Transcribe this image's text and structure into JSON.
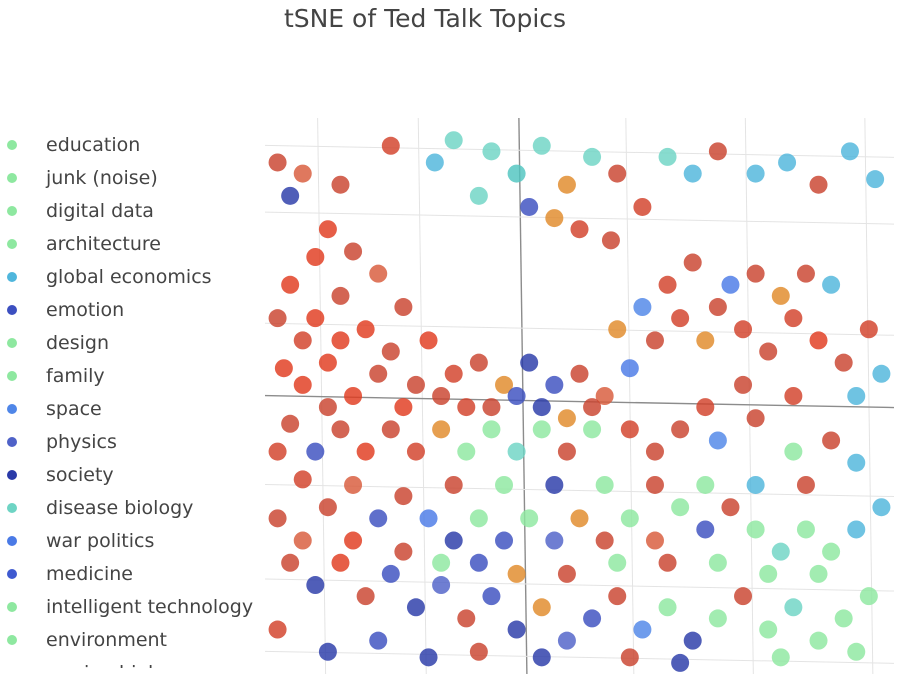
{
  "chart_data": {
    "type": "scatter",
    "title": "tSNE of Ted Talk Topics",
    "xlabel": "",
    "ylabel": "",
    "grid": true,
    "legend_position": "left",
    "series": [
      {
        "name": "education",
        "color": "#8ee8a0"
      },
      {
        "name": "junk (noise)",
        "color": "#8ee8a0"
      },
      {
        "name": "digital data",
        "color": "#8ee8a0"
      },
      {
        "name": "architecture",
        "color": "#8ee8a0"
      },
      {
        "name": "global economics",
        "color": "#4fb6dc"
      },
      {
        "name": "emotion",
        "color": "#3c4fc0"
      },
      {
        "name": "design",
        "color": "#8ee8a0"
      },
      {
        "name": "family",
        "color": "#8ee8a0"
      },
      {
        "name": "space",
        "color": "#4f86e8"
      },
      {
        "name": "physics",
        "color": "#4f62c8"
      },
      {
        "name": "society",
        "color": "#2a3aa8"
      },
      {
        "name": "disease biology",
        "color": "#6ed4c4"
      },
      {
        "name": "war politics",
        "color": "#4a7ae6"
      },
      {
        "name": "medicine",
        "color": "#3f5ad0"
      },
      {
        "name": "intelligent technology",
        "color": "#8ee8a0"
      },
      {
        "name": "environment",
        "color": "#8ee8a0"
      },
      {
        "name": "marine biology",
        "color": "#8ee8a0"
      }
    ],
    "points": [
      {
        "x": 2,
        "y": 92,
        "c": "#c9432e"
      },
      {
        "x": 6,
        "y": 90,
        "c": "#d85a3a"
      },
      {
        "x": 4,
        "y": 86,
        "c": "#2a3aa8"
      },
      {
        "x": 12,
        "y": 88,
        "c": "#c9432e"
      },
      {
        "x": 20,
        "y": 95,
        "c": "#d2412a"
      },
      {
        "x": 27,
        "y": 92,
        "c": "#4fb6dc"
      },
      {
        "x": 30,
        "y": 96,
        "c": "#6ed4c4"
      },
      {
        "x": 36,
        "y": 94,
        "c": "#6ed4c4"
      },
      {
        "x": 40,
        "y": 90,
        "c": "#4fc4c0"
      },
      {
        "x": 44,
        "y": 95,
        "c": "#6ed4c4"
      },
      {
        "x": 48,
        "y": 88,
        "c": "#e08a2a"
      },
      {
        "x": 52,
        "y": 93,
        "c": "#6ed4c4"
      },
      {
        "x": 56,
        "y": 90,
        "c": "#c9432e"
      },
      {
        "x": 60,
        "y": 84,
        "c": "#d2412a"
      },
      {
        "x": 64,
        "y": 93,
        "c": "#6ed4c4"
      },
      {
        "x": 68,
        "y": 90,
        "c": "#4fb6dc"
      },
      {
        "x": 72,
        "y": 94,
        "c": "#c9432e"
      },
      {
        "x": 78,
        "y": 90,
        "c": "#4fb6dc"
      },
      {
        "x": 83,
        "y": 92,
        "c": "#4fb6dc"
      },
      {
        "x": 88,
        "y": 88,
        "c": "#c9432e"
      },
      {
        "x": 93,
        "y": 94,
        "c": "#4fb6dc"
      },
      {
        "x": 97,
        "y": 89,
        "c": "#4fb6dc"
      },
      {
        "x": 34,
        "y": 86,
        "c": "#6ed4c4"
      },
      {
        "x": 46,
        "y": 82,
        "c": "#e08a2a"
      },
      {
        "x": 50,
        "y": 80,
        "c": "#d2412a"
      },
      {
        "x": 55,
        "y": 78,
        "c": "#c9432e"
      },
      {
        "x": 42,
        "y": 84,
        "c": "#3c4fc0"
      },
      {
        "x": 10,
        "y": 80,
        "c": "#e03a1e"
      },
      {
        "x": 8,
        "y": 75,
        "c": "#e03a1e"
      },
      {
        "x": 14,
        "y": 76,
        "c": "#c9432e"
      },
      {
        "x": 18,
        "y": 72,
        "c": "#d85a3a"
      },
      {
        "x": 4,
        "y": 70,
        "c": "#e03a1e"
      },
      {
        "x": 12,
        "y": 68,
        "c": "#c9432e"
      },
      {
        "x": 22,
        "y": 66,
        "c": "#c9432e"
      },
      {
        "x": 16,
        "y": 62,
        "c": "#e03a1e"
      },
      {
        "x": 6,
        "y": 60,
        "c": "#d2412a"
      },
      {
        "x": 3,
        "y": 55,
        "c": "#e03a1e"
      },
      {
        "x": 10,
        "y": 56,
        "c": "#e03a1e"
      },
      {
        "x": 20,
        "y": 58,
        "c": "#c9432e"
      },
      {
        "x": 26,
        "y": 60,
        "c": "#e03a1e"
      },
      {
        "x": 30,
        "y": 54,
        "c": "#d2412a"
      },
      {
        "x": 24,
        "y": 52,
        "c": "#c9432e"
      },
      {
        "x": 34,
        "y": 56,
        "c": "#c9432e"
      },
      {
        "x": 38,
        "y": 52,
        "c": "#e08a2a"
      },
      {
        "x": 42,
        "y": 56,
        "c": "#2a3aa8"
      },
      {
        "x": 46,
        "y": 52,
        "c": "#3c4fc0"
      },
      {
        "x": 50,
        "y": 54,
        "c": "#c9432e"
      },
      {
        "x": 54,
        "y": 50,
        "c": "#d85a3a"
      },
      {
        "x": 58,
        "y": 55,
        "c": "#4a7ae6"
      },
      {
        "x": 62,
        "y": 60,
        "c": "#c9432e"
      },
      {
        "x": 66,
        "y": 64,
        "c": "#d2412a"
      },
      {
        "x": 70,
        "y": 60,
        "c": "#e08a2a"
      },
      {
        "x": 72,
        "y": 66,
        "c": "#c9432e"
      },
      {
        "x": 76,
        "y": 62,
        "c": "#d2412a"
      },
      {
        "x": 80,
        "y": 58,
        "c": "#c9432e"
      },
      {
        "x": 84,
        "y": 64,
        "c": "#d2412a"
      },
      {
        "x": 88,
        "y": 60,
        "c": "#e03a1e"
      },
      {
        "x": 92,
        "y": 56,
        "c": "#c9432e"
      },
      {
        "x": 96,
        "y": 62,
        "c": "#d2412a"
      },
      {
        "x": 90,
        "y": 70,
        "c": "#4fb6dc"
      },
      {
        "x": 86,
        "y": 72,
        "c": "#c9432e"
      },
      {
        "x": 82,
        "y": 68,
        "c": "#e08a2a"
      },
      {
        "x": 78,
        "y": 72,
        "c": "#c9432e"
      },
      {
        "x": 74,
        "y": 70,
        "c": "#4a7ae6"
      },
      {
        "x": 68,
        "y": 74,
        "c": "#c9432e"
      },
      {
        "x": 64,
        "y": 70,
        "c": "#d2412a"
      },
      {
        "x": 60,
        "y": 66,
        "c": "#4f86e8"
      },
      {
        "x": 56,
        "y": 62,
        "c": "#e08a2a"
      },
      {
        "x": 94,
        "y": 50,
        "c": "#4fb6dc"
      },
      {
        "x": 98,
        "y": 54,
        "c": "#4fb6dc"
      },
      {
        "x": 76,
        "y": 52,
        "c": "#c9432e"
      },
      {
        "x": 70,
        "y": 48,
        "c": "#d2412a"
      },
      {
        "x": 66,
        "y": 44,
        "c": "#c9432e"
      },
      {
        "x": 72,
        "y": 42,
        "c": "#4f86e8"
      },
      {
        "x": 78,
        "y": 46,
        "c": "#c9432e"
      },
      {
        "x": 84,
        "y": 50,
        "c": "#d2412a"
      },
      {
        "x": 62,
        "y": 40,
        "c": "#c9432e"
      },
      {
        "x": 58,
        "y": 44,
        "c": "#d2412a"
      },
      {
        "x": 4,
        "y": 45,
        "c": "#c9432e"
      },
      {
        "x": 8,
        "y": 40,
        "c": "#3c4fc0"
      },
      {
        "x": 12,
        "y": 44,
        "c": "#c9432e"
      },
      {
        "x": 16,
        "y": 40,
        "c": "#e03a1e"
      },
      {
        "x": 20,
        "y": 44,
        "c": "#c9432e"
      },
      {
        "x": 24,
        "y": 40,
        "c": "#d2412a"
      },
      {
        "x": 28,
        "y": 44,
        "c": "#e08a2a"
      },
      {
        "x": 32,
        "y": 40,
        "c": "#8ee8a0"
      },
      {
        "x": 36,
        "y": 44,
        "c": "#8ee8a0"
      },
      {
        "x": 40,
        "y": 40,
        "c": "#6ed4c4"
      },
      {
        "x": 44,
        "y": 44,
        "c": "#8ee8a0"
      },
      {
        "x": 48,
        "y": 40,
        "c": "#c9432e"
      },
      {
        "x": 52,
        "y": 44,
        "c": "#8ee8a0"
      },
      {
        "x": 6,
        "y": 35,
        "c": "#d2412a"
      },
      {
        "x": 10,
        "y": 30,
        "c": "#c9432e"
      },
      {
        "x": 14,
        "y": 34,
        "c": "#d85a3a"
      },
      {
        "x": 18,
        "y": 28,
        "c": "#3c4fc0"
      },
      {
        "x": 22,
        "y": 32,
        "c": "#c9432e"
      },
      {
        "x": 26,
        "y": 28,
        "c": "#4a7ae6"
      },
      {
        "x": 30,
        "y": 24,
        "c": "#2a3aa8"
      },
      {
        "x": 34,
        "y": 28,
        "c": "#8ee8a0"
      },
      {
        "x": 38,
        "y": 24,
        "c": "#3c4fc0"
      },
      {
        "x": 42,
        "y": 28,
        "c": "#8ee8a0"
      },
      {
        "x": 46,
        "y": 24,
        "c": "#4f62c8"
      },
      {
        "x": 50,
        "y": 28,
        "c": "#e08a2a"
      },
      {
        "x": 54,
        "y": 24,
        "c": "#c9432e"
      },
      {
        "x": 58,
        "y": 28,
        "c": "#8ee8a0"
      },
      {
        "x": 62,
        "y": 24,
        "c": "#d85a3a"
      },
      {
        "x": 66,
        "y": 30,
        "c": "#8ee8a0"
      },
      {
        "x": 70,
        "y": 26,
        "c": "#3c4fc0"
      },
      {
        "x": 74,
        "y": 30,
        "c": "#c9432e"
      },
      {
        "x": 78,
        "y": 26,
        "c": "#8ee8a0"
      },
      {
        "x": 82,
        "y": 22,
        "c": "#6ed4c4"
      },
      {
        "x": 86,
        "y": 26,
        "c": "#8ee8a0"
      },
      {
        "x": 90,
        "y": 22,
        "c": "#8ee8a0"
      },
      {
        "x": 94,
        "y": 26,
        "c": "#4fb6dc"
      },
      {
        "x": 98,
        "y": 30,
        "c": "#4fb6dc"
      },
      {
        "x": 4,
        "y": 20,
        "c": "#c9432e"
      },
      {
        "x": 8,
        "y": 16,
        "c": "#2a3aa8"
      },
      {
        "x": 12,
        "y": 20,
        "c": "#e03a1e"
      },
      {
        "x": 16,
        "y": 14,
        "c": "#c9432e"
      },
      {
        "x": 20,
        "y": 18,
        "c": "#3c4fc0"
      },
      {
        "x": 24,
        "y": 12,
        "c": "#2a3aa8"
      },
      {
        "x": 28,
        "y": 16,
        "c": "#4f62c8"
      },
      {
        "x": 32,
        "y": 10,
        "c": "#c9432e"
      },
      {
        "x": 36,
        "y": 14,
        "c": "#3c4fc0"
      },
      {
        "x": 40,
        "y": 8,
        "c": "#2a3aa8"
      },
      {
        "x": 44,
        "y": 12,
        "c": "#e08a2a"
      },
      {
        "x": 48,
        "y": 6,
        "c": "#4f62c8"
      },
      {
        "x": 52,
        "y": 10,
        "c": "#3c4fc0"
      },
      {
        "x": 56,
        "y": 14,
        "c": "#c9432e"
      },
      {
        "x": 60,
        "y": 8,
        "c": "#4f86e8"
      },
      {
        "x": 64,
        "y": 12,
        "c": "#8ee8a0"
      },
      {
        "x": 68,
        "y": 6,
        "c": "#2a3aa8"
      },
      {
        "x": 72,
        "y": 10,
        "c": "#8ee8a0"
      },
      {
        "x": 76,
        "y": 14,
        "c": "#c9432e"
      },
      {
        "x": 80,
        "y": 8,
        "c": "#8ee8a0"
      },
      {
        "x": 84,
        "y": 12,
        "c": "#6ed4c4"
      },
      {
        "x": 88,
        "y": 6,
        "c": "#8ee8a0"
      },
      {
        "x": 92,
        "y": 10,
        "c": "#8ee8a0"
      },
      {
        "x": 96,
        "y": 14,
        "c": "#8ee8a0"
      },
      {
        "x": 2,
        "y": 8,
        "c": "#d2412a"
      },
      {
        "x": 10,
        "y": 4,
        "c": "#2a3aa8"
      },
      {
        "x": 18,
        "y": 6,
        "c": "#3c4fc0"
      },
      {
        "x": 26,
        "y": 3,
        "c": "#2a3aa8"
      },
      {
        "x": 34,
        "y": 4,
        "c": "#c9432e"
      },
      {
        "x": 44,
        "y": 3,
        "c": "#2a3aa8"
      },
      {
        "x": 58,
        "y": 3,
        "c": "#c9432e"
      },
      {
        "x": 66,
        "y": 2,
        "c": "#2a3aa8"
      },
      {
        "x": 82,
        "y": 3,
        "c": "#8ee8a0"
      },
      {
        "x": 94,
        "y": 4,
        "c": "#8ee8a0"
      },
      {
        "x": 14,
        "y": 50,
        "c": "#e03a1e"
      },
      {
        "x": 18,
        "y": 54,
        "c": "#c9432e"
      },
      {
        "x": 22,
        "y": 48,
        "c": "#e03a1e"
      },
      {
        "x": 28,
        "y": 50,
        "c": "#c9432e"
      },
      {
        "x": 32,
        "y": 48,
        "c": "#d2412a"
      },
      {
        "x": 36,
        "y": 48,
        "c": "#c9432e"
      },
      {
        "x": 40,
        "y": 50,
        "c": "#3c4fc0"
      },
      {
        "x": 44,
        "y": 48,
        "c": "#2a3aa8"
      },
      {
        "x": 48,
        "y": 46,
        "c": "#e08a2a"
      },
      {
        "x": 52,
        "y": 48,
        "c": "#c9432e"
      },
      {
        "x": 8,
        "y": 64,
        "c": "#e03a1e"
      },
      {
        "x": 12,
        "y": 60,
        "c": "#e03a1e"
      },
      {
        "x": 2,
        "y": 64,
        "c": "#c9432e"
      },
      {
        "x": 6,
        "y": 52,
        "c": "#e03a1e"
      },
      {
        "x": 10,
        "y": 48,
        "c": "#c9432e"
      },
      {
        "x": 2,
        "y": 40,
        "c": "#d2412a"
      },
      {
        "x": 6,
        "y": 24,
        "c": "#d85a3a"
      },
      {
        "x": 2,
        "y": 28,
        "c": "#c9432e"
      },
      {
        "x": 14,
        "y": 24,
        "c": "#e03a1e"
      },
      {
        "x": 22,
        "y": 22,
        "c": "#c9432e"
      },
      {
        "x": 30,
        "y": 34,
        "c": "#c9432e"
      },
      {
        "x": 38,
        "y": 34,
        "c": "#8ee8a0"
      },
      {
        "x": 46,
        "y": 34,
        "c": "#2a3aa8"
      },
      {
        "x": 54,
        "y": 34,
        "c": "#8ee8a0"
      },
      {
        "x": 62,
        "y": 34,
        "c": "#c9432e"
      },
      {
        "x": 70,
        "y": 34,
        "c": "#8ee8a0"
      },
      {
        "x": 78,
        "y": 34,
        "c": "#4fb6dc"
      },
      {
        "x": 86,
        "y": 34,
        "c": "#c9432e"
      },
      {
        "x": 94,
        "y": 38,
        "c": "#4fb6dc"
      },
      {
        "x": 90,
        "y": 42,
        "c": "#c9432e"
      },
      {
        "x": 84,
        "y": 40,
        "c": "#8ee8a0"
      },
      {
        "x": 28,
        "y": 20,
        "c": "#8ee8a0"
      },
      {
        "x": 34,
        "y": 20,
        "c": "#3c4fc0"
      },
      {
        "x": 40,
        "y": 18,
        "c": "#e08a2a"
      },
      {
        "x": 48,
        "y": 18,
        "c": "#c9432e"
      },
      {
        "x": 56,
        "y": 20,
        "c": "#8ee8a0"
      },
      {
        "x": 64,
        "y": 20,
        "c": "#c9432e"
      },
      {
        "x": 72,
        "y": 20,
        "c": "#8ee8a0"
      },
      {
        "x": 80,
        "y": 18,
        "c": "#8ee8a0"
      },
      {
        "x": 88,
        "y": 18,
        "c": "#8ee8a0"
      }
    ]
  }
}
